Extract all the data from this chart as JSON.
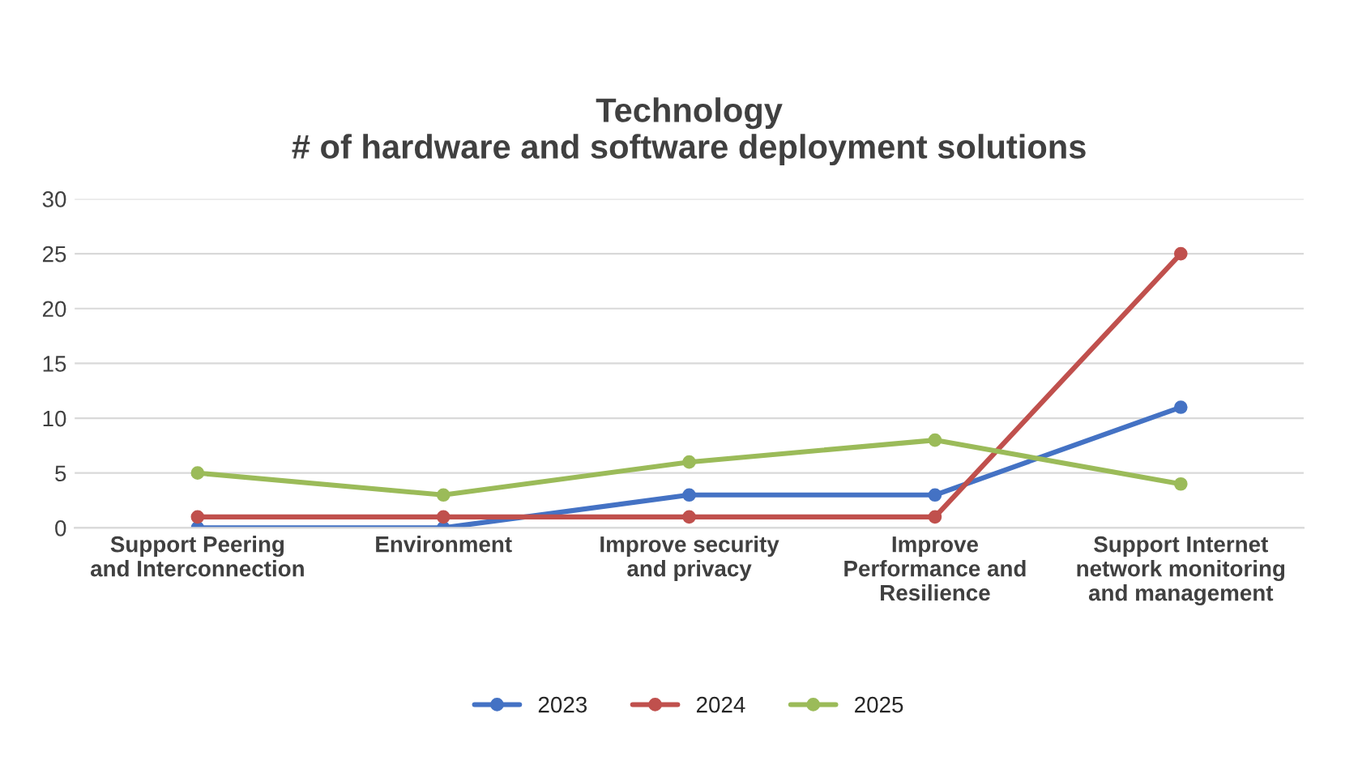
{
  "chart_data": {
    "type": "line",
    "title": "Technology\n# of hardware and software deployment solutions",
    "categories": [
      "Support Peering\nand Interconnection",
      "Environment",
      "Improve security\nand privacy",
      "Improve\nPerformance and\nResilience",
      "Support Internet\nnetwork monitoring\nand management"
    ],
    "series": [
      {
        "name": "2023",
        "color": "#4472c4",
        "values": [
          0,
          0,
          3,
          3,
          11
        ]
      },
      {
        "name": "2024",
        "color": "#c0504d",
        "values": [
          1,
          1,
          1,
          1,
          25
        ]
      },
      {
        "name": "2025",
        "color": "#9bbb59",
        "values": [
          5,
          3,
          6,
          8,
          4
        ]
      }
    ],
    "ylim": [
      0,
      30
    ],
    "yticks": [
      0,
      5,
      10,
      15,
      20,
      25,
      30
    ],
    "grid": "y",
    "legend": "bottom",
    "marker": "circle",
    "line_style": "solid"
  }
}
